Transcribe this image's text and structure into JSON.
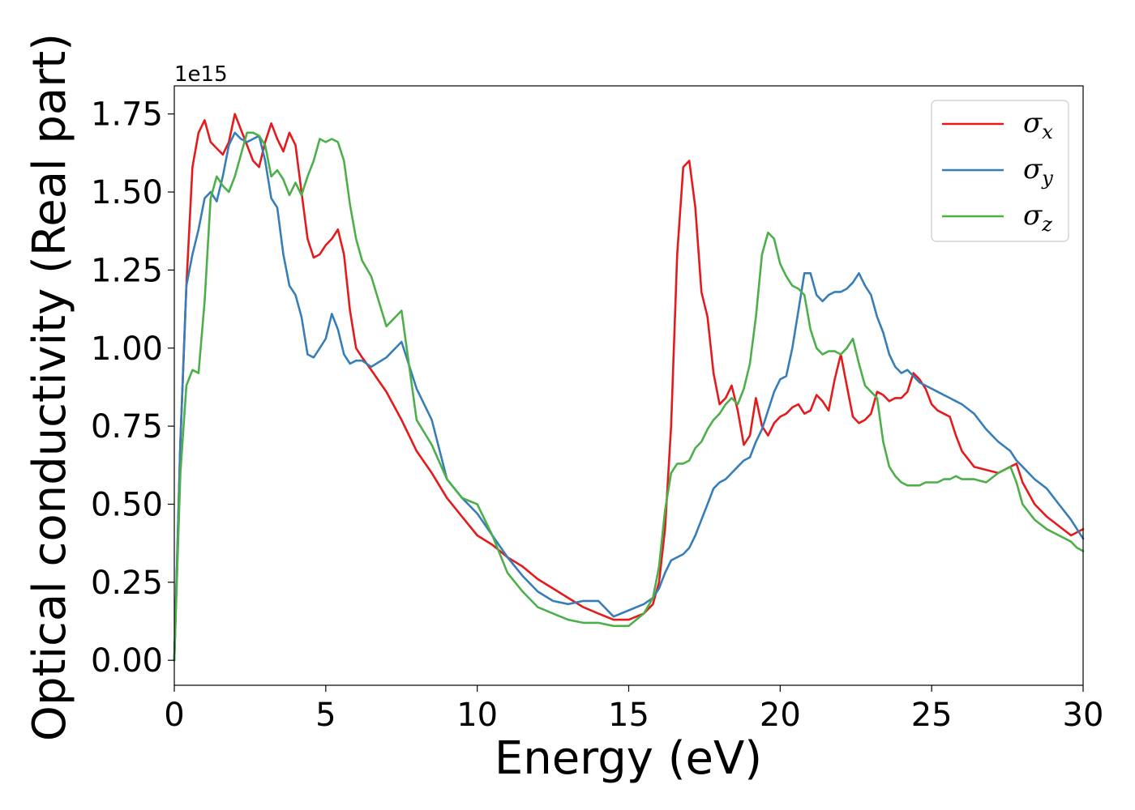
{
  "chart_data": {
    "type": "line",
    "title": "",
    "xlabel": "Energy (eV)",
    "ylabel": "Optical conductivity (Real part)",
    "y_offset_label": "1e15",
    "xlim": [
      0,
      30
    ],
    "ylim": [
      -0.08,
      1.84
    ],
    "x_ticks": [
      0,
      5,
      10,
      15,
      20,
      25,
      30
    ],
    "x_tick_labels": [
      "0",
      "5",
      "10",
      "15",
      "20",
      "25",
      "30"
    ],
    "y_ticks": [
      0,
      0.25,
      0.5,
      0.75,
      1.0,
      1.25,
      1.5,
      1.75
    ],
    "y_tick_labels": [
      "0.00",
      "0.25",
      "0.50",
      "0.75",
      "1.00",
      "1.25",
      "1.50",
      "1.75"
    ],
    "grid": false,
    "legend_position": "top-right",
    "series": [
      {
        "name": "σ_x",
        "legend_symbol": "σ",
        "legend_subscript": "x",
        "color": "#e41a1c",
        "x": [
          0,
          0.2,
          0.4,
          0.6,
          0.8,
          1.0,
          1.2,
          1.4,
          1.6,
          1.8,
          2.0,
          2.2,
          2.4,
          2.6,
          2.8,
          3.0,
          3.2,
          3.4,
          3.6,
          3.8,
          4.0,
          4.2,
          4.4,
          4.6,
          4.8,
          5.0,
          5.2,
          5.4,
          5.6,
          5.8,
          6.0,
          6.2,
          6.5,
          7.0,
          7.5,
          8.0,
          8.5,
          9.0,
          9.5,
          10.0,
          10.5,
          11.0,
          11.5,
          12.0,
          12.5,
          13.0,
          13.5,
          14.0,
          14.5,
          15.0,
          15.5,
          15.8,
          16.0,
          16.2,
          16.4,
          16.6,
          16.8,
          17.0,
          17.2,
          17.4,
          17.6,
          17.8,
          18.0,
          18.2,
          18.4,
          18.6,
          18.8,
          19.0,
          19.2,
          19.4,
          19.6,
          19.8,
          20.0,
          20.2,
          20.4,
          20.6,
          20.8,
          21.0,
          21.2,
          21.4,
          21.6,
          21.8,
          22.0,
          22.2,
          22.4,
          22.6,
          22.8,
          23.0,
          23.2,
          23.4,
          23.6,
          23.8,
          24.0,
          24.2,
          24.4,
          24.6,
          24.8,
          25.0,
          25.2,
          25.4,
          25.6,
          25.8,
          26.0,
          26.4,
          26.8,
          27.2,
          27.6,
          27.8,
          28.0,
          28.4,
          28.8,
          29.2,
          29.6,
          29.8,
          30.0
        ],
        "y": [
          0,
          0.7,
          1.2,
          1.58,
          1.69,
          1.73,
          1.66,
          1.64,
          1.62,
          1.66,
          1.75,
          1.7,
          1.65,
          1.6,
          1.58,
          1.66,
          1.72,
          1.67,
          1.63,
          1.69,
          1.65,
          1.5,
          1.35,
          1.29,
          1.3,
          1.33,
          1.35,
          1.38,
          1.3,
          1.12,
          1.0,
          0.97,
          0.93,
          0.86,
          0.77,
          0.67,
          0.6,
          0.52,
          0.46,
          0.4,
          0.37,
          0.33,
          0.3,
          0.26,
          0.23,
          0.2,
          0.17,
          0.15,
          0.13,
          0.13,
          0.15,
          0.18,
          0.25,
          0.42,
          0.75,
          1.3,
          1.58,
          1.6,
          1.45,
          1.18,
          1.1,
          0.92,
          0.82,
          0.84,
          0.88,
          0.8,
          0.69,
          0.72,
          0.84,
          0.75,
          0.72,
          0.76,
          0.78,
          0.79,
          0.81,
          0.82,
          0.79,
          0.8,
          0.85,
          0.83,
          0.8,
          0.9,
          0.98,
          0.88,
          0.78,
          0.76,
          0.77,
          0.79,
          0.86,
          0.85,
          0.83,
          0.84,
          0.84,
          0.86,
          0.92,
          0.9,
          0.87,
          0.82,
          0.8,
          0.79,
          0.78,
          0.72,
          0.67,
          0.62,
          0.61,
          0.6,
          0.62,
          0.63,
          0.57,
          0.5,
          0.46,
          0.43,
          0.4,
          0.41,
          0.42
        ]
      },
      {
        "name": "σ_y",
        "legend_symbol": "σ",
        "legend_subscript": "y",
        "color": "#377eb8",
        "x": [
          0,
          0.2,
          0.4,
          0.6,
          0.8,
          1.0,
          1.2,
          1.4,
          1.6,
          1.8,
          2.0,
          2.2,
          2.4,
          2.6,
          2.8,
          3.0,
          3.2,
          3.4,
          3.6,
          3.8,
          4.0,
          4.2,
          4.4,
          4.6,
          4.8,
          5.0,
          5.2,
          5.4,
          5.6,
          5.8,
          6.0,
          6.2,
          6.5,
          7.0,
          7.5,
          8.0,
          8.5,
          9.0,
          9.5,
          10.0,
          10.5,
          11.0,
          11.5,
          12.0,
          12.5,
          13.0,
          13.5,
          14.0,
          14.5,
          15.0,
          15.5,
          15.8,
          16.0,
          16.2,
          16.4,
          16.6,
          16.8,
          17.0,
          17.2,
          17.4,
          17.6,
          17.8,
          18.0,
          18.2,
          18.4,
          18.6,
          18.8,
          19.0,
          19.2,
          19.4,
          19.6,
          19.8,
          20.0,
          20.2,
          20.4,
          20.6,
          20.8,
          21.0,
          21.2,
          21.4,
          21.6,
          21.8,
          22.0,
          22.2,
          22.4,
          22.6,
          22.8,
          23.0,
          23.2,
          23.4,
          23.6,
          23.8,
          24.0,
          24.2,
          24.4,
          24.6,
          24.8,
          25.0,
          25.2,
          25.4,
          25.6,
          25.8,
          26.0,
          26.4,
          26.8,
          27.2,
          27.6,
          27.8,
          28.0,
          28.4,
          28.8,
          29.2,
          29.6,
          29.8,
          30.0
        ],
        "y": [
          0,
          0.7,
          1.2,
          1.3,
          1.38,
          1.48,
          1.5,
          1.47,
          1.55,
          1.65,
          1.69,
          1.67,
          1.66,
          1.67,
          1.68,
          1.6,
          1.48,
          1.45,
          1.3,
          1.2,
          1.17,
          1.1,
          0.98,
          0.97,
          1.0,
          1.03,
          1.11,
          1.06,
          0.98,
          0.95,
          0.96,
          0.96,
          0.94,
          0.97,
          1.02,
          0.87,
          0.77,
          0.58,
          0.52,
          0.47,
          0.4,
          0.33,
          0.27,
          0.22,
          0.19,
          0.18,
          0.19,
          0.19,
          0.14,
          0.16,
          0.18,
          0.2,
          0.23,
          0.28,
          0.32,
          0.33,
          0.34,
          0.36,
          0.4,
          0.45,
          0.5,
          0.55,
          0.57,
          0.58,
          0.6,
          0.62,
          0.64,
          0.65,
          0.7,
          0.74,
          0.8,
          0.86,
          0.9,
          0.91,
          1.0,
          1.12,
          1.24,
          1.24,
          1.17,
          1.15,
          1.17,
          1.18,
          1.18,
          1.19,
          1.21,
          1.24,
          1.2,
          1.17,
          1.1,
          1.05,
          0.98,
          0.94,
          0.92,
          0.93,
          0.91,
          0.89,
          0.88,
          0.87,
          0.86,
          0.85,
          0.84,
          0.83,
          0.82,
          0.79,
          0.74,
          0.7,
          0.67,
          0.64,
          0.62,
          0.58,
          0.55,
          0.5,
          0.45,
          0.42,
          0.39
        ]
      },
      {
        "name": "σ_z",
        "legend_symbol": "σ",
        "legend_subscript": "z",
        "color": "#4daf4a",
        "x": [
          0,
          0.2,
          0.4,
          0.6,
          0.8,
          1.0,
          1.2,
          1.4,
          1.6,
          1.8,
          2.0,
          2.2,
          2.4,
          2.6,
          2.8,
          3.0,
          3.2,
          3.4,
          3.6,
          3.8,
          4.0,
          4.2,
          4.4,
          4.6,
          4.8,
          5.0,
          5.2,
          5.4,
          5.6,
          5.8,
          6.0,
          6.2,
          6.5,
          7.0,
          7.5,
          8.0,
          8.5,
          9.0,
          9.5,
          10.0,
          10.5,
          11.0,
          11.5,
          12.0,
          12.5,
          13.0,
          13.5,
          14.0,
          14.5,
          15.0,
          15.5,
          15.8,
          16.0,
          16.2,
          16.4,
          16.6,
          16.8,
          17.0,
          17.2,
          17.4,
          17.6,
          17.8,
          18.0,
          18.2,
          18.4,
          18.6,
          18.8,
          19.0,
          19.2,
          19.4,
          19.6,
          19.8,
          20.0,
          20.2,
          20.4,
          20.6,
          20.8,
          21.0,
          21.2,
          21.4,
          21.6,
          21.8,
          22.0,
          22.2,
          22.4,
          22.6,
          22.8,
          23.0,
          23.2,
          23.4,
          23.6,
          23.8,
          24.0,
          24.2,
          24.4,
          24.6,
          24.8,
          25.0,
          25.2,
          25.4,
          25.6,
          25.8,
          26.0,
          26.4,
          26.8,
          27.2,
          27.6,
          27.8,
          28.0,
          28.4,
          28.8,
          29.2,
          29.6,
          29.8,
          30.0
        ],
        "y": [
          0,
          0.6,
          0.88,
          0.93,
          0.92,
          1.15,
          1.48,
          1.55,
          1.52,
          1.5,
          1.55,
          1.62,
          1.69,
          1.69,
          1.68,
          1.65,
          1.55,
          1.57,
          1.54,
          1.49,
          1.53,
          1.49,
          1.55,
          1.6,
          1.67,
          1.66,
          1.67,
          1.66,
          1.6,
          1.46,
          1.35,
          1.28,
          1.23,
          1.07,
          1.12,
          0.77,
          0.69,
          0.58,
          0.52,
          0.5,
          0.4,
          0.28,
          0.22,
          0.17,
          0.15,
          0.13,
          0.12,
          0.12,
          0.11,
          0.11,
          0.15,
          0.2,
          0.3,
          0.48,
          0.6,
          0.63,
          0.63,
          0.64,
          0.68,
          0.7,
          0.74,
          0.77,
          0.79,
          0.82,
          0.84,
          0.82,
          0.87,
          0.95,
          1.1,
          1.3,
          1.37,
          1.35,
          1.27,
          1.23,
          1.2,
          1.19,
          1.17,
          1.06,
          1.0,
          0.98,
          0.99,
          0.99,
          0.98,
          1.0,
          1.03,
          0.95,
          0.88,
          0.86,
          0.84,
          0.7,
          0.62,
          0.59,
          0.57,
          0.56,
          0.56,
          0.56,
          0.57,
          0.57,
          0.57,
          0.58,
          0.58,
          0.59,
          0.58,
          0.58,
          0.57,
          0.6,
          0.62,
          0.57,
          0.5,
          0.45,
          0.42,
          0.4,
          0.38,
          0.36,
          0.35
        ]
      }
    ]
  }
}
